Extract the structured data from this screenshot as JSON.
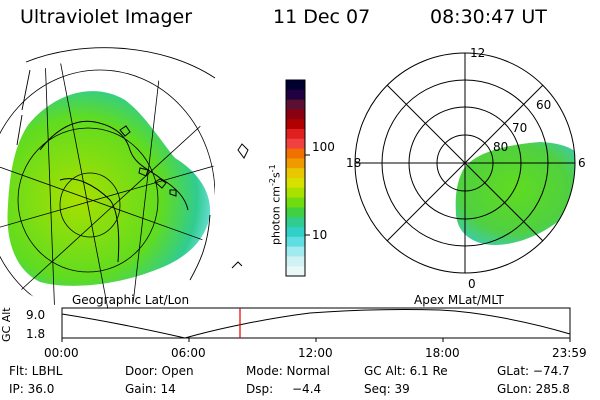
{
  "header": {
    "instrument": "Ultraviolet Imager",
    "date": "11 Dec 07",
    "time": "08:30:47 UT"
  },
  "geo_panel": {
    "label": "Geographic Lat/Lon"
  },
  "colorbar": {
    "unit": "photon cm",
    "unit_exp1": "-2",
    "unit_s": "s",
    "unit_exp2": "-1",
    "tick_100": "100",
    "tick_10": "10",
    "colors": [
      "#000030",
      "#200040",
      "#5a1030",
      "#8a0010",
      "#b00000",
      "#e02020",
      "#f04040",
      "#f07000",
      "#f09a00",
      "#e8c800",
      "#d8e000",
      "#a8e000",
      "#70dc10",
      "#40d040",
      "#30cc90",
      "#30d0c8",
      "#60dde0",
      "#a0eaf0",
      "#d0f2f4",
      "#eaf8f8"
    ]
  },
  "polar_panel": {
    "label": "Apex MLat/MLT",
    "mlt_12": "12",
    "mlt_18": "18",
    "mlt_6": "6",
    "mlt_0": "0",
    "lat_60": "60",
    "lat_70": "70",
    "lat_80": "80"
  },
  "altitude_plot": {
    "ylabel": "GC Alt",
    "ytick_top": "9.0",
    "ytick_bottom": "1.8",
    "xticks": [
      "00:00",
      "06:00",
      "12:00",
      "18:00",
      "23:59"
    ],
    "current_time_marker": "08:30",
    "marker_color": "#e00000"
  },
  "status": {
    "filter": "Flt: LBHL",
    "door": "Door: Open",
    "mode": "Mode: Normal",
    "gc_alt": "GC Alt: 6.1 Re",
    "glat": "GLat: −74.7",
    "ip": "IP: 36.0",
    "gain": "Gain: 14",
    "dsp_label": "Dsp:",
    "dsp_value": "−4.4",
    "seq": "Seq: 39",
    "glon": "GLon: 285.8"
  }
}
